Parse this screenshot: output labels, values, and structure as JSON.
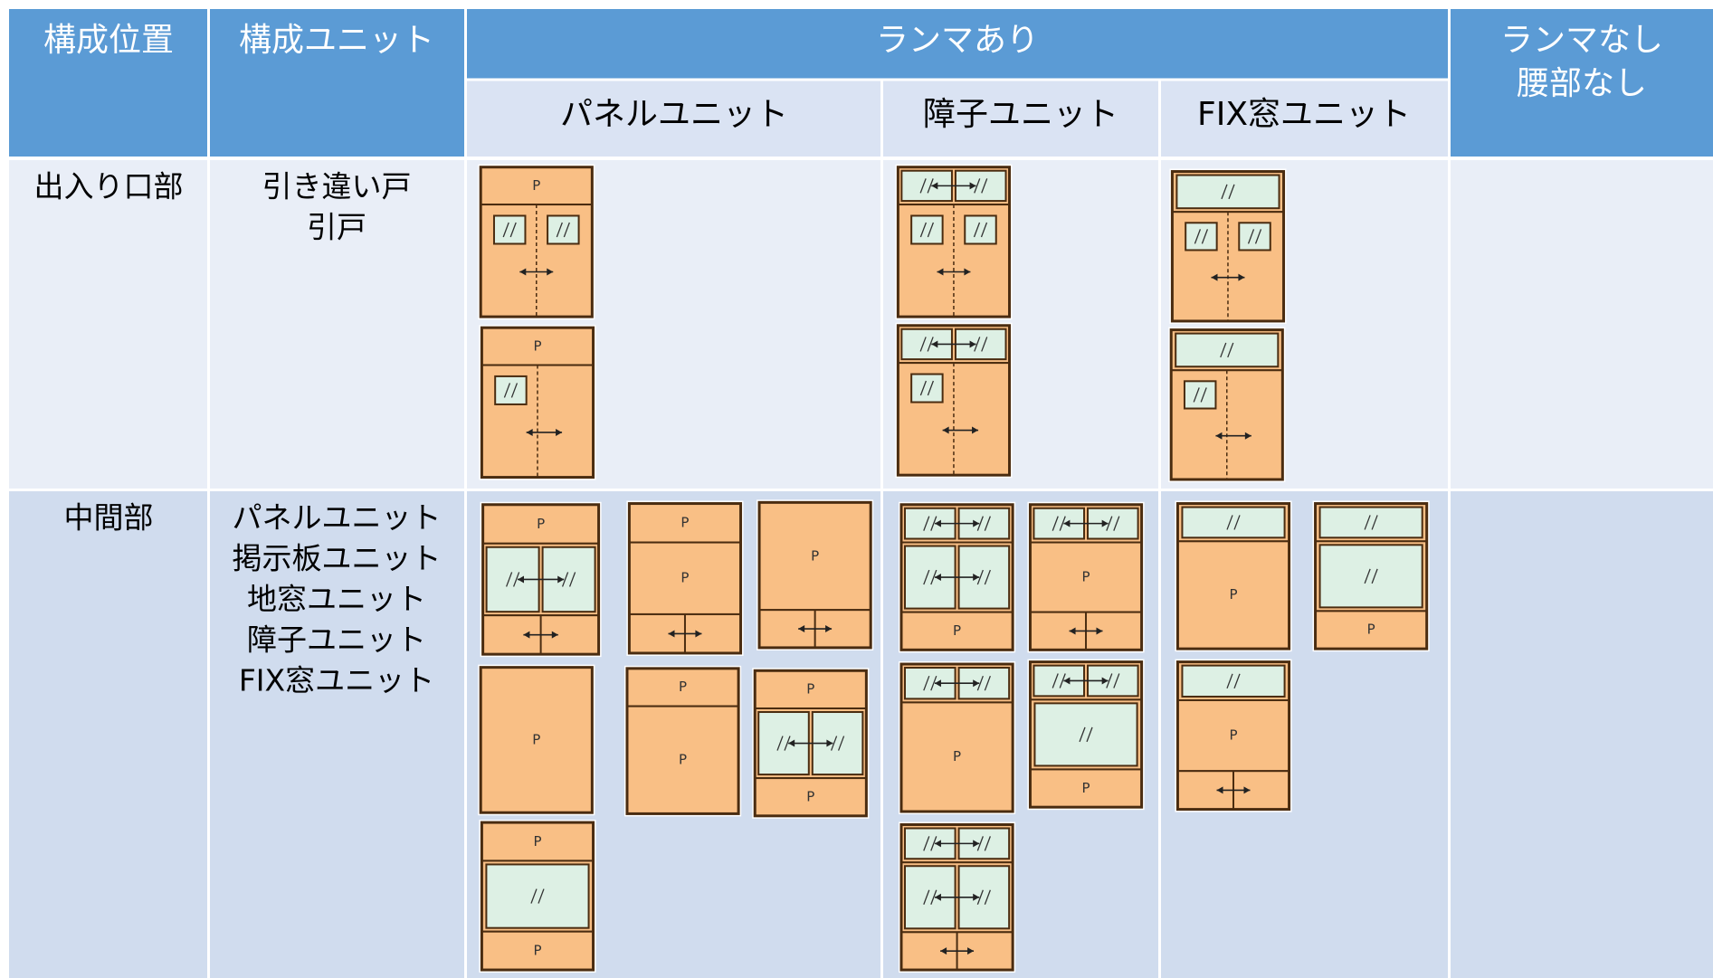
{
  "header": {
    "position": "構成位置",
    "unit": "構成ユニット",
    "with_transom": "ランマあり",
    "panel_unit": "パネルユニット",
    "shoji_unit": "障子ユニット",
    "fix_unit": "FIX窓ユニット",
    "without_transom": [
      "ランマなし",
      "腰部なし"
    ]
  },
  "rows": [
    {
      "position": "出入り口部",
      "units": [
        "引き違い戸",
        "引戸"
      ]
    },
    {
      "position": "中間部",
      "units": [
        "パネルユニット",
        "掲示板ユニット",
        "地窓ユニット",
        "障子ユニット",
        "FIX窓ユニット"
      ]
    }
  ],
  "panel_label": "P"
}
